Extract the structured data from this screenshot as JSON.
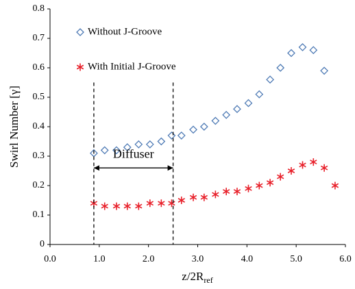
{
  "chart_data": {
    "type": "scatter",
    "ylabel": "Swirl Number [γ]",
    "xlabel": {
      "text": "z/2R",
      "subscript": "ref"
    },
    "xlim": [
      0,
      6
    ],
    "ylim": [
      0,
      0.8
    ],
    "xticks": [
      {
        "value": 0,
        "label": "0.0"
      },
      {
        "value": 1,
        "label": "1.0"
      },
      {
        "value": 2,
        "label": "2.0"
      },
      {
        "value": 3,
        "label": "3.0"
      },
      {
        "value": 4,
        "label": "4.0"
      },
      {
        "value": 5,
        "label": "5.0"
      },
      {
        "value": 6,
        "label": "6.0"
      }
    ],
    "yticks": [
      0,
      0.1,
      0.2,
      0.3,
      0.4,
      0.5,
      0.6,
      0.7,
      0.8
    ],
    "grid": false,
    "legend": "upper-left",
    "series": [
      {
        "name": "Without J-Groove",
        "color": "#4f7bb5",
        "marker": "diamond",
        "x": [
          0.89,
          1.11,
          1.35,
          1.57,
          1.8,
          2.03,
          2.26,
          2.47,
          2.67,
          2.91,
          3.13,
          3.36,
          3.58,
          3.8,
          4.03,
          4.25,
          4.47,
          4.68,
          4.9,
          5.13,
          5.35,
          5.57
        ],
        "values": [
          0.31,
          0.32,
          0.32,
          0.33,
          0.34,
          0.34,
          0.35,
          0.37,
          0.37,
          0.39,
          0.4,
          0.42,
          0.44,
          0.46,
          0.48,
          0.51,
          0.56,
          0.6,
          0.65,
          0.67,
          0.66,
          0.59
        ]
      },
      {
        "name": "With Initial J-Groove",
        "color": "#e8202a",
        "marker": "asterisk",
        "x": [
          0.89,
          1.11,
          1.35,
          1.57,
          1.8,
          2.03,
          2.26,
          2.47,
          2.67,
          2.91,
          3.13,
          3.36,
          3.58,
          3.8,
          4.03,
          4.25,
          4.47,
          4.68,
          4.9,
          5.13,
          5.35,
          5.57,
          5.79
        ],
        "values": [
          0.14,
          0.13,
          0.13,
          0.13,
          0.13,
          0.14,
          0.14,
          0.14,
          0.15,
          0.16,
          0.16,
          0.17,
          0.18,
          0.18,
          0.19,
          0.2,
          0.21,
          0.23,
          0.25,
          0.27,
          0.28,
          0.26,
          0.2
        ]
      }
    ],
    "annotation": {
      "text": "Diffuser",
      "x_range": [
        0.89,
        2.5
      ],
      "y_top": 0.55,
      "arrow_y": 0.26
    }
  }
}
